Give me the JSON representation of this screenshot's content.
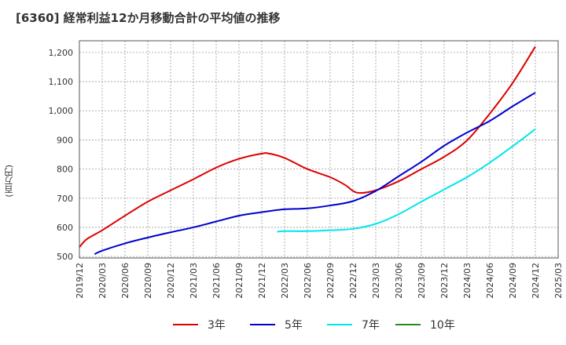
{
  "title": "[6360]  経常利益12か月移動合計の平均値の推移",
  "chart_data": {
    "type": "line",
    "title": "[6360]  経常利益12か月移動合計の平均値の推移",
    "ylabel": "(百万円)",
    "xlabel": "",
    "ylim": [
      495,
      1240
    ],
    "yticks": [
      500,
      600,
      700,
      800,
      900,
      1000,
      1100,
      1200
    ],
    "x_categories": [
      "2019/12",
      "2020/03",
      "2020/06",
      "2020/09",
      "2020/12",
      "2021/03",
      "2021/06",
      "2021/09",
      "2021/12",
      "2022/03",
      "2022/06",
      "2022/09",
      "2022/12",
      "2023/03",
      "2023/06",
      "2023/09",
      "2023/12",
      "2024/03",
      "2024/06",
      "2024/09",
      "2024/12",
      "2025/03"
    ],
    "grid": true,
    "legend_position": "bottom",
    "series": [
      {
        "name": "3年",
        "color": "#dd0000",
        "x": [
          "2019/12",
          "2020/01",
          "2020/03",
          "2020/06",
          "2020/09",
          "2020/12",
          "2021/03",
          "2021/06",
          "2021/09",
          "2021/12",
          "2022/01",
          "2022/03",
          "2022/06",
          "2022/09",
          "2022/11",
          "2022/12",
          "2023/01",
          "2023/03",
          "2023/06",
          "2023/09",
          "2023/12",
          "2024/03",
          "2024/06",
          "2024/09",
          "2024/12"
        ],
        "values": [
          532,
          560,
          590,
          640,
          688,
          727,
          765,
          805,
          835,
          853,
          853,
          838,
          800,
          772,
          745,
          725,
          718,
          727,
          758,
          800,
          842,
          898,
          990,
          1095,
          1220
        ]
      },
      {
        "name": "5年",
        "color": "#0000cc",
        "x": [
          "2020/02",
          "2020/03",
          "2020/06",
          "2020/09",
          "2020/12",
          "2021/03",
          "2021/06",
          "2021/09",
          "2021/12",
          "2022/03",
          "2022/06",
          "2022/09",
          "2022/12",
          "2023/03",
          "2023/06",
          "2023/09",
          "2023/12",
          "2024/03",
          "2024/06",
          "2024/09",
          "2024/12"
        ],
        "values": [
          508,
          520,
          545,
          565,
          583,
          600,
          620,
          640,
          652,
          662,
          665,
          675,
          690,
          725,
          775,
          825,
          880,
          925,
          965,
          1015,
          1062
        ]
      },
      {
        "name": "7年",
        "color": "#00e5ee",
        "x": [
          "2022/02",
          "2022/03",
          "2022/06",
          "2022/09",
          "2022/12",
          "2023/03",
          "2023/06",
          "2023/09",
          "2023/12",
          "2024/03",
          "2024/06",
          "2024/09",
          "2024/12"
        ],
        "values": [
          585,
          587,
          587,
          590,
          595,
          612,
          645,
          688,
          730,
          772,
          822,
          878,
          937
        ]
      },
      {
        "name": "10年",
        "color": "#228b22",
        "x": [],
        "values": []
      }
    ]
  }
}
